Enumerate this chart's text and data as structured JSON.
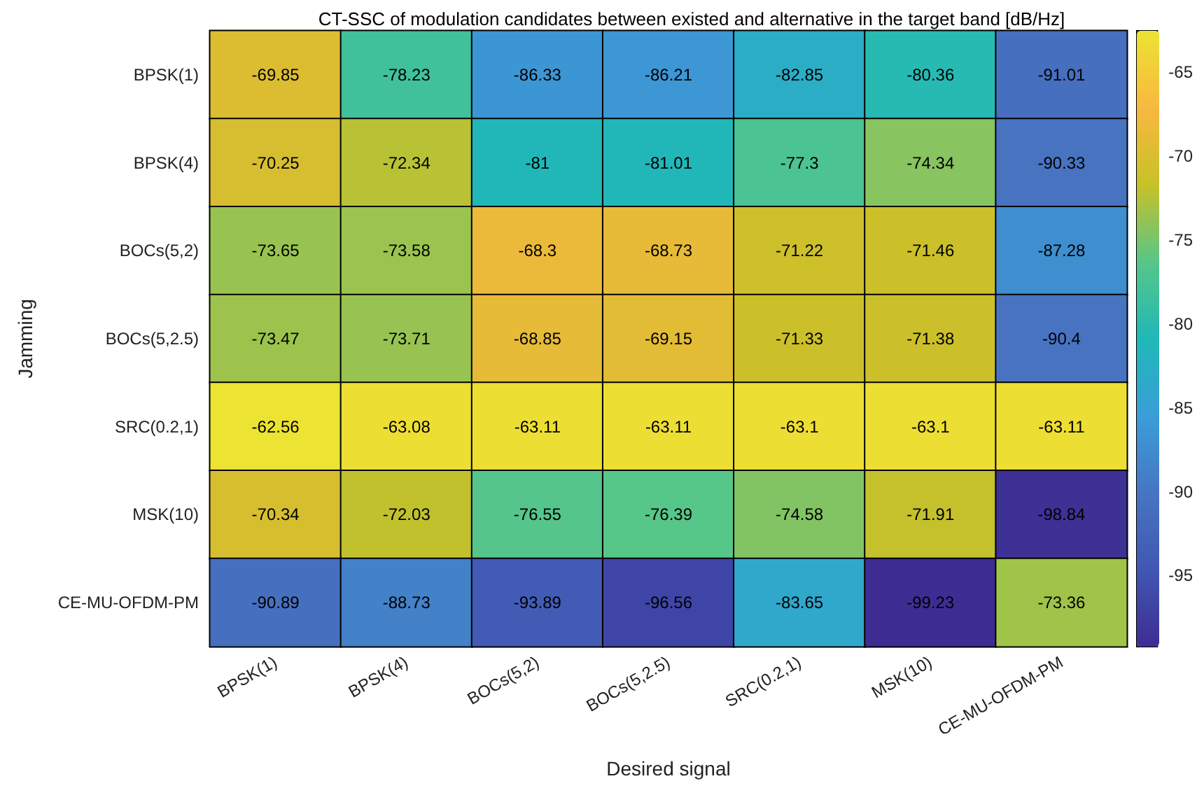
{
  "chart_data": {
    "type": "heatmap",
    "title": "CT-SSC of modulation candidates between existed and alternative in the target band [dB/Hz]",
    "xlabel": "Desired signal",
    "ylabel": "Jamming",
    "categories": [
      "BPSK(1)",
      "BPSK(4)",
      "BOCs(5,2)",
      "BOCs(5,2.5)",
      "SRC(0.2,1)",
      "MSK(10)",
      "CE-MU-OFDM-PM"
    ],
    "y_categories": [
      "BPSK(1)",
      "BPSK(4)",
      "BOCs(5,2)",
      "BOCs(5,2.5)",
      "SRC(0.2,1)",
      "MSK(10)",
      "CE-MU-OFDM-PM"
    ],
    "cells": [
      [
        -69.85,
        -78.23,
        -86.33,
        -86.21,
        -82.85,
        -80.36,
        -91.01
      ],
      [
        -70.25,
        -72.34,
        -81,
        -81.01,
        -77.3,
        -74.34,
        -90.33
      ],
      [
        -73.65,
        -73.58,
        -68.3,
        -68.73,
        -71.22,
        -71.46,
        -87.28
      ],
      [
        -73.47,
        -73.71,
        -68.85,
        -69.15,
        -71.33,
        -71.38,
        -90.4
      ],
      [
        -62.56,
        -63.08,
        -63.11,
        -63.11,
        -63.1,
        -63.1,
        -63.11
      ],
      [
        -70.34,
        -72.03,
        -76.55,
        -76.39,
        -74.58,
        -71.91,
        -98.84
      ],
      [
        -90.89,
        -88.73,
        -93.89,
        -96.56,
        -83.65,
        -99.23,
        -73.36
      ]
    ],
    "clim": [
      -99.23,
      -62.56
    ],
    "cticks": [
      -95,
      -90,
      -85,
      -80,
      -75,
      -70,
      -65
    ],
    "data_labels": true
  }
}
